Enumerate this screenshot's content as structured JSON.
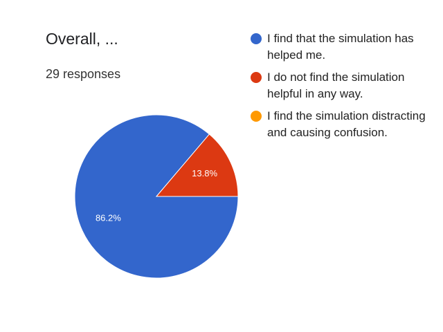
{
  "chart_data": {
    "type": "pie",
    "title": "Overall, ...",
    "subtitle": "29 responses",
    "categories": [
      "I find that the simulation has helped me.",
      "I do not find the simulation helpful in any way.",
      "I find the simulation distracting and causing confusion."
    ],
    "values": [
      86.2,
      13.8,
      0
    ],
    "value_labels": [
      "86.2%",
      "13.8%",
      null
    ],
    "colors": [
      "#3366cc",
      "#dc3912",
      "#ff9900"
    ],
    "legend": "right"
  }
}
